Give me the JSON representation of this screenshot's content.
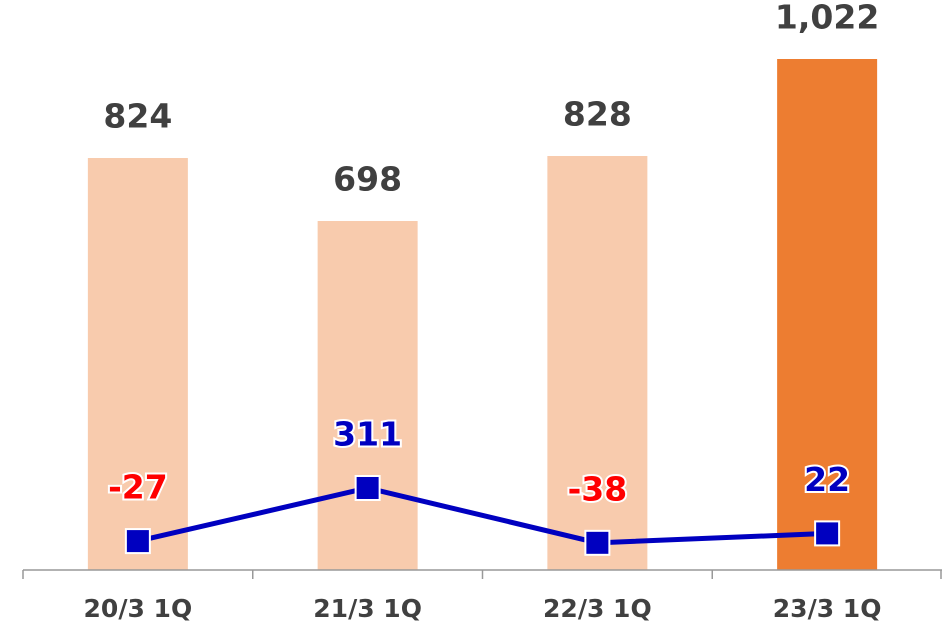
{
  "chart_data": {
    "type": "bar",
    "categories": [
      "20/3 1Q",
      "21/3 1Q",
      "22/3 1Q",
      "23/3 1Q"
    ],
    "series": [
      {
        "type": "bar",
        "colors": [
          "#f8cbad",
          "#f8cbad",
          "#f8cbad",
          "#ed7d31"
        ],
        "values": [
          824,
          698,
          828,
          1022
        ],
        "value_labels": [
          "824",
          "698",
          "828",
          "1,022"
        ],
        "label_color": "#404040"
      },
      {
        "type": "line",
        "axis": "y2",
        "color": "#0000c0",
        "values": [
          -27,
          311,
          -38,
          22
        ],
        "label_colors": [
          "#ff0000",
          "#0000c0",
          "#ff0000",
          "#0000c0"
        ]
      }
    ],
    "ylim": [
      0,
      1100
    ],
    "y2lim": [
      -211,
      3290
    ]
  }
}
